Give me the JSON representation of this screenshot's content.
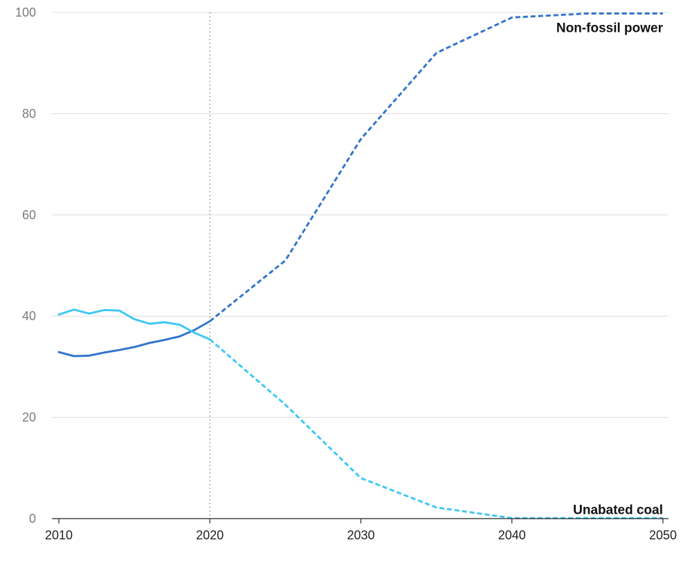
{
  "chart_data": {
    "type": "line",
    "title": "",
    "xlabel": "",
    "ylabel": "",
    "xlim": [
      2010,
      2050
    ],
    "ylim": [
      0,
      100
    ],
    "x_ticks": [
      2010,
      2020,
      2030,
      2040,
      2050
    ],
    "y_ticks": [
      0,
      20,
      40,
      60,
      80,
      100
    ],
    "grid": "horizontal",
    "reference_line_x": 2020,
    "series": [
      {
        "name": "Non-fossil power",
        "color": "#3375cc",
        "historical": {
          "x": [
            2010,
            2011,
            2012,
            2013,
            2014,
            2015,
            2016,
            2017,
            2018,
            2019,
            2020
          ],
          "y": [
            32.9,
            32.1,
            32.2,
            32.8,
            33.3,
            33.9,
            34.7,
            35.3,
            36.0,
            37.3,
            39.0
          ]
        },
        "projected": {
          "x": [
            2020,
            2025,
            2030,
            2035,
            2040,
            2045,
            2050
          ],
          "y": [
            39.0,
            51.0,
            75.0,
            92.0,
            99.0,
            99.8,
            99.8
          ]
        }
      },
      {
        "name": "Unabated coal",
        "color": "#40c8f5",
        "historical": {
          "x": [
            2010,
            2011,
            2012,
            2013,
            2014,
            2015,
            2016,
            2017,
            2018,
            2019,
            2020
          ],
          "y": [
            40.3,
            41.3,
            40.5,
            41.2,
            41.1,
            39.4,
            38.5,
            38.8,
            38.3,
            36.7,
            35.4
          ]
        },
        "projected": {
          "x": [
            2020,
            2025,
            2030,
            2035,
            2040,
            2045,
            2050
          ],
          "y": [
            35.4,
            22.5,
            8.0,
            2.2,
            0.1,
            0.1,
            0.1
          ]
        }
      }
    ]
  }
}
